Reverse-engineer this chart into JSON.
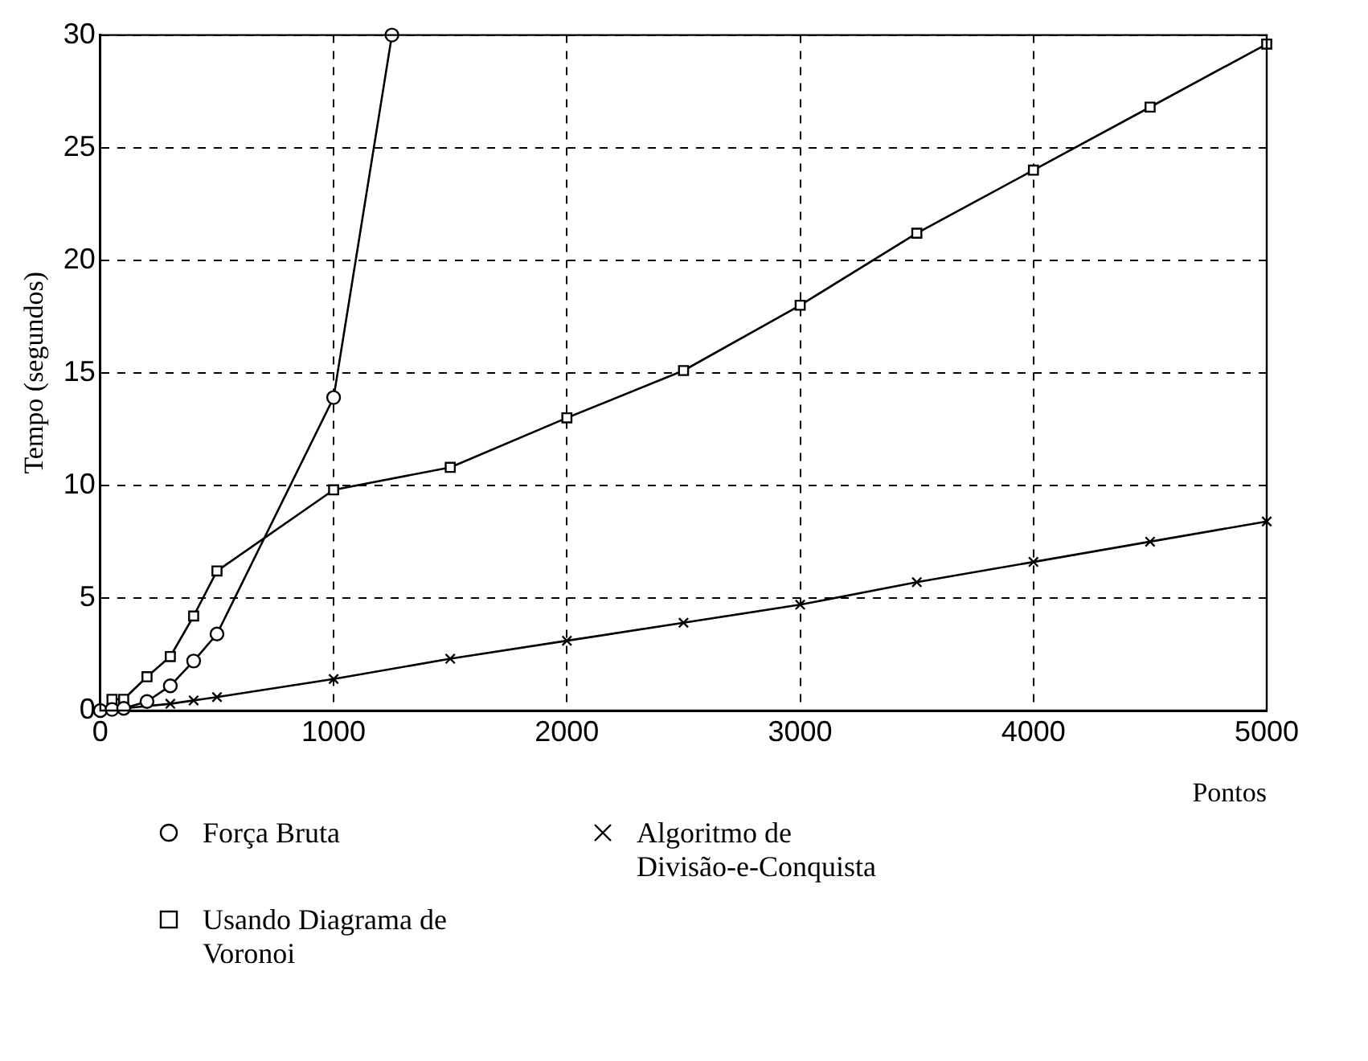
{
  "chart_data": {
    "type": "line",
    "xlabel": "Pontos",
    "ylabel": "Tempo (segundos)",
    "xlim": [
      0,
      5000
    ],
    "ylim": [
      0,
      30
    ],
    "xticks": [
      0,
      1000,
      2000,
      3000,
      4000,
      5000
    ],
    "yticks": [
      0,
      5,
      10,
      15,
      20,
      25,
      30
    ],
    "grid": true,
    "legend": "bottom",
    "line_style": "solid",
    "series": [
      {
        "name": "Força Bruta",
        "color": "#000000",
        "marker": "circle",
        "x": [
          0,
          50,
          100,
          200,
          300,
          400,
          500,
          1000,
          1250
        ],
        "values": [
          0,
          0.05,
          0.1,
          0.4,
          1.1,
          2.2,
          3.4,
          13.9,
          30
        ]
      },
      {
        "name": "Usando Diagrama de Voronoi",
        "color": "#000000",
        "marker": "square",
        "x": [
          50,
          100,
          200,
          300,
          400,
          500,
          1000,
          1500,
          2000,
          2500,
          3000,
          3500,
          4000,
          4500,
          5000
        ],
        "values": [
          0.5,
          0.5,
          1.5,
          2.4,
          4.2,
          6.2,
          9.8,
          10.8,
          13,
          15.1,
          18,
          21.2,
          24,
          26.8,
          29.6
        ]
      },
      {
        "name": "Algoritmo de Divisão-e-Conquista",
        "color": "#000000",
        "marker": "cross",
        "x": [
          0,
          100,
          300,
          400,
          500,
          1000,
          1500,
          2000,
          2500,
          3000,
          3500,
          4000,
          4500,
          5000
        ],
        "values": [
          0,
          0.1,
          0.3,
          0.45,
          0.6,
          1.4,
          2.3,
          3.1,
          3.9,
          4.7,
          5.7,
          6.6,
          7.5,
          8.4
        ]
      }
    ]
  }
}
